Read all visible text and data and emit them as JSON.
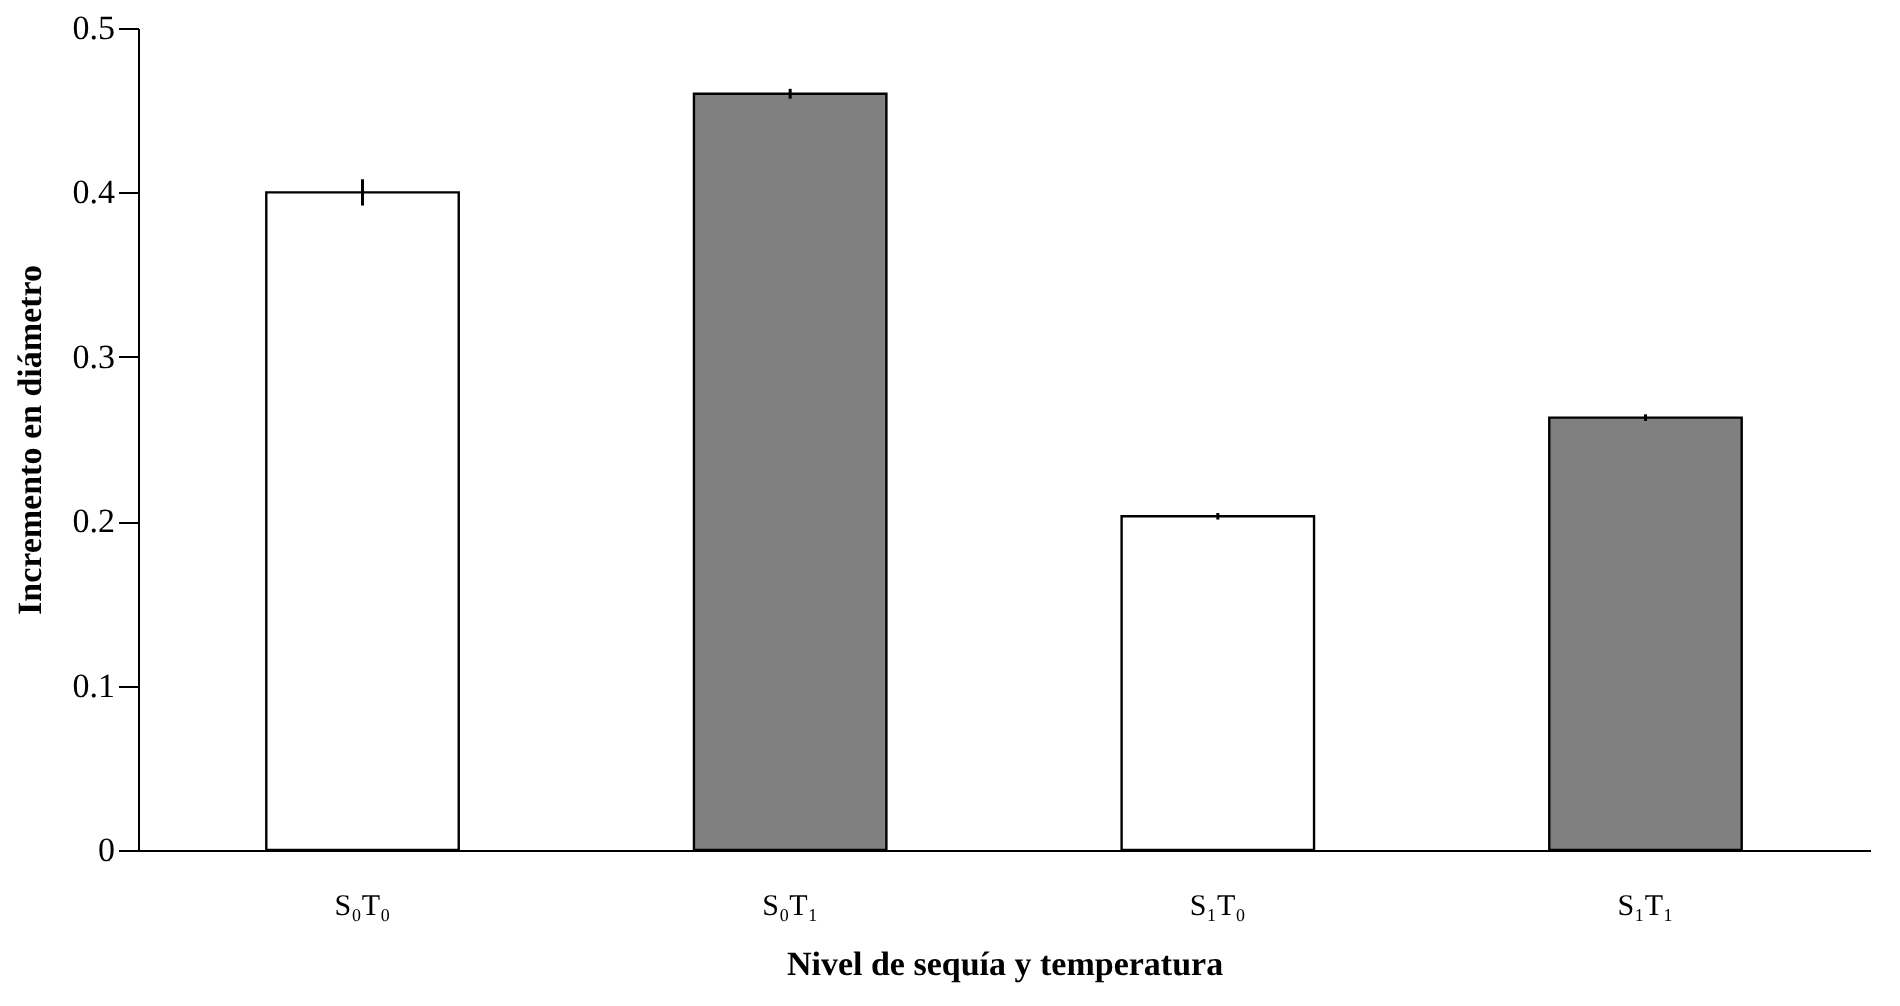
{
  "chart_data": {
    "type": "bar",
    "xlabel": "Nivel de sequía y temperatura",
    "ylabel": "Incremento en diámetro",
    "categories": [
      "S₀T₀",
      "S₀T₁",
      "S₁T₀",
      "S₁T₁"
    ],
    "values": [
      0.4,
      0.46,
      0.203,
      0.263
    ],
    "errors": [
      0.008,
      0.003,
      0.002,
      0.002
    ],
    "colors": [
      "#ffffff",
      "#808080",
      "#ffffff",
      "#808080"
    ],
    "ylim": [
      0,
      0.5
    ],
    "yticks": [
      0,
      0.1,
      0.2,
      0.3,
      0.4,
      0.5
    ],
    "grid": false
  }
}
